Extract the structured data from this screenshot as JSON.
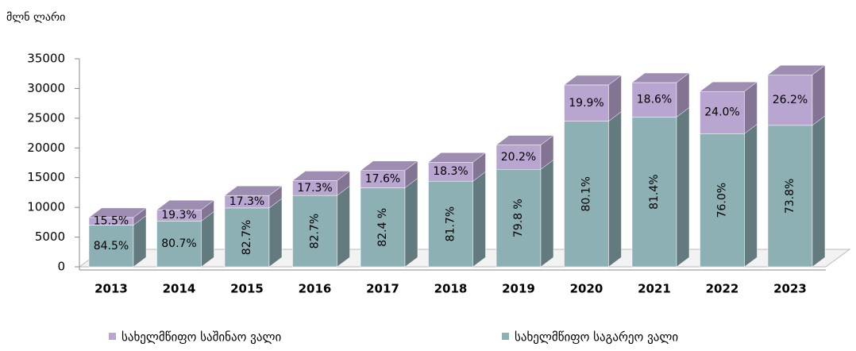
{
  "chart_data": {
    "type": "bar",
    "stacked": true,
    "y_unit": "მლნ ლარი",
    "categories": [
      "2013",
      "2014",
      "2015",
      "2016",
      "2017",
      "2018",
      "2019",
      "2020",
      "2021",
      "2022",
      "2023"
    ],
    "series": [
      {
        "name": "სახელმწიფო საგარეო ვალი",
        "color": "#8db0b5",
        "values": [
          7000,
          7700,
          9900,
          12000,
          13300,
          14400,
          16400,
          24500,
          25200,
          22400,
          23800
        ],
        "share_labels": [
          "84.5%",
          "80.7%",
          "82.7%",
          "82.7%",
          "82.4 %",
          "81.7%",
          "79.8 %",
          "80.1%",
          "81.4%",
          "76.0%",
          "73.8%"
        ]
      },
      {
        "name": "სახელმწიფო საშინაო ვალი",
        "color": "#b9a6d0",
        "values": [
          1300,
          1900,
          2100,
          2500,
          2900,
          3200,
          4100,
          6100,
          5800,
          7100,
          8500
        ],
        "share_labels": [
          "15.5%",
          "19.3%",
          "17.3%",
          "17.3%",
          "17.6%",
          "18.3%",
          "20.2%",
          "19.9%",
          "18.6%",
          "24.0%",
          "26.2%"
        ]
      }
    ],
    "ylim": [
      0,
      35000
    ],
    "yticks": [
      0,
      5000,
      10000,
      15000,
      20000,
      25000,
      30000,
      35000
    ]
  }
}
